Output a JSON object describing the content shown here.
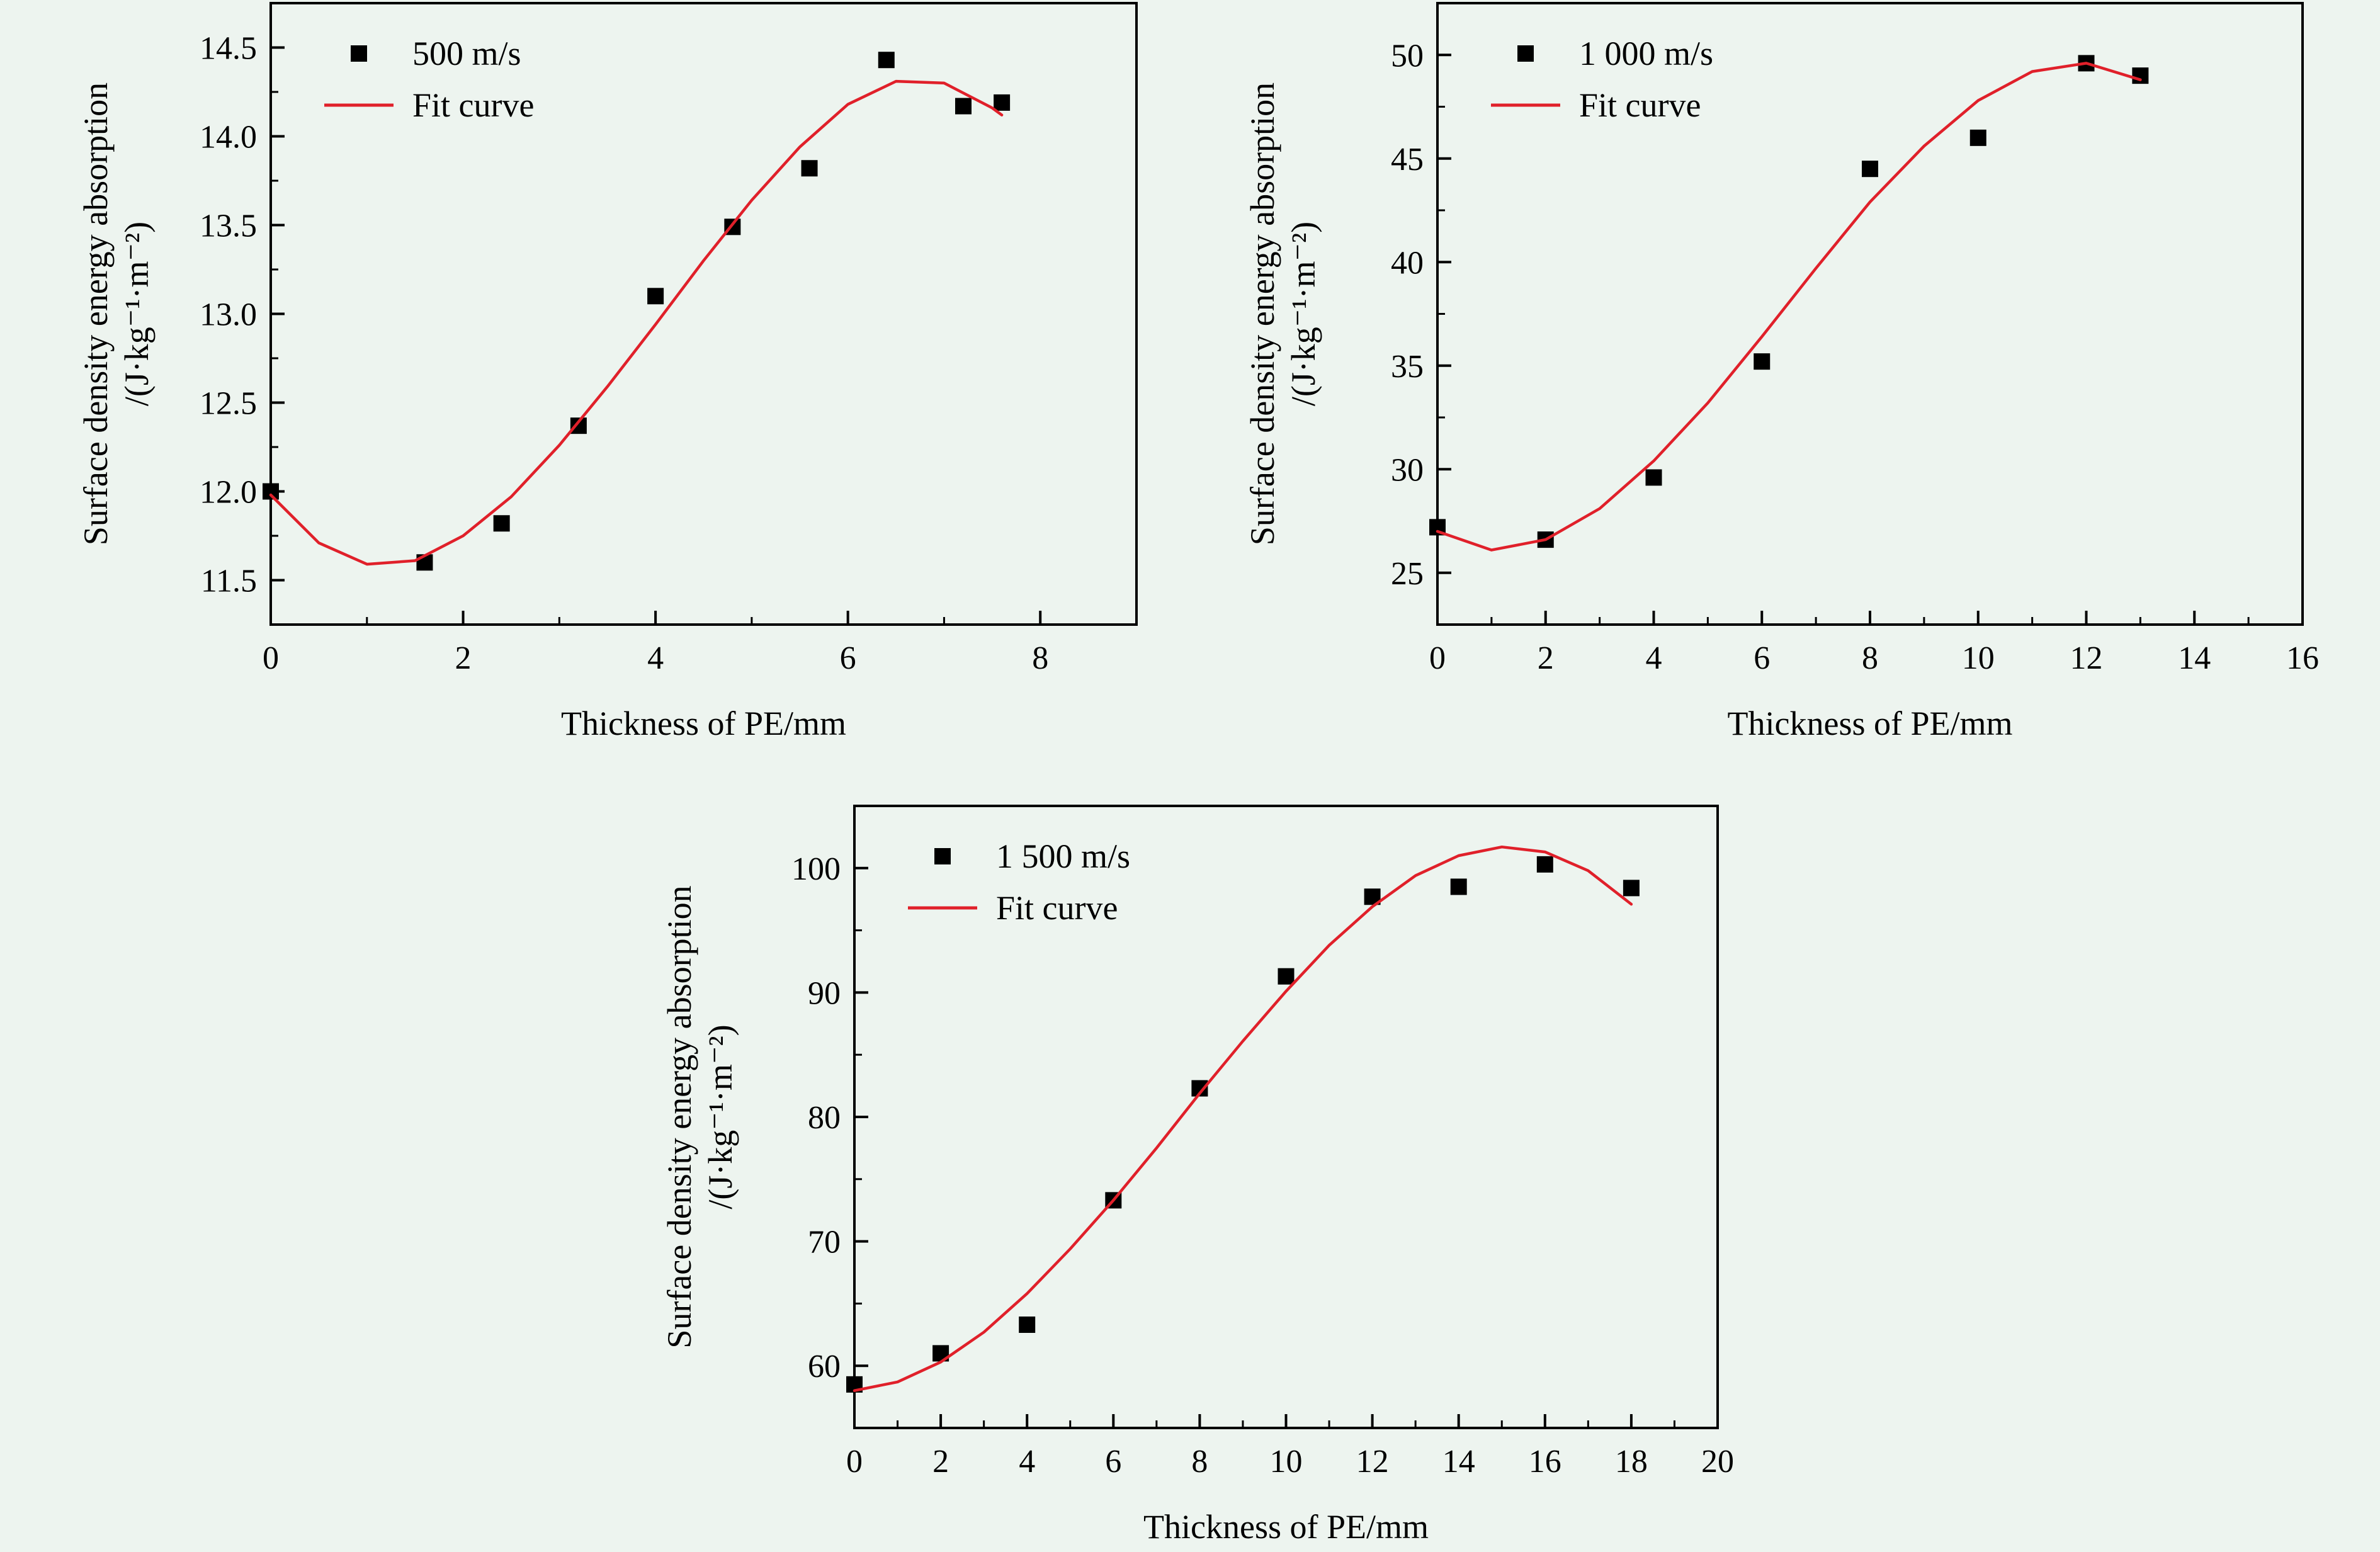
{
  "colors": {
    "background": "#edf4ef",
    "fit": "#e0202a",
    "marker": "#000000"
  },
  "chart_data": [
    {
      "type": "scatter",
      "xlabel": "Thickness of PE/mm",
      "ylabel_line1": "Surface density energy absorption",
      "ylabel_line2": "/(J·kg⁻¹·m⁻²)",
      "xlim": [
        0,
        9
      ],
      "ylim": [
        11.25,
        14.75
      ],
      "xticks": [
        0,
        2,
        4,
        6,
        8
      ],
      "yticks": [
        11.5,
        12.0,
        12.5,
        13.0,
        13.5,
        14.0,
        14.5
      ],
      "ytick_labels": [
        "11.5",
        "12.0",
        "12.5",
        "13.0",
        "13.5",
        "14.0",
        "14.5"
      ],
      "grid": false,
      "legend_position": "top-left",
      "series": [
        {
          "name": "500 m/s",
          "kind": "scatter",
          "marker": "square",
          "x": [
            0,
            1.6,
            2.4,
            3.2,
            4.0,
            4.8,
            5.6,
            6.4,
            7.2,
            7.6
          ],
          "y": [
            12.0,
            11.6,
            11.82,
            12.37,
            13.1,
            13.49,
            13.82,
            14.43,
            14.17,
            14.19
          ]
        },
        {
          "name": "Fit curve",
          "kind": "line",
          "x": [
            0,
            0.5,
            1.0,
            1.5,
            2.0,
            2.5,
            3.0,
            3.5,
            4.0,
            4.5,
            5.0,
            5.5,
            6.0,
            6.5,
            7.0,
            7.5,
            7.6
          ],
          "y": [
            11.98,
            11.71,
            11.59,
            11.61,
            11.75,
            11.97,
            12.26,
            12.59,
            12.94,
            13.3,
            13.64,
            13.94,
            14.18,
            14.31,
            14.3,
            14.16,
            14.12
          ]
        }
      ]
    },
    {
      "type": "scatter",
      "xlabel": "Thickness of PE/mm",
      "ylabel_line1": "Surface density energy absorption",
      "ylabel_line2": "/(J·kg⁻¹·m⁻²)",
      "xlim": [
        0,
        16
      ],
      "ylim": [
        22.5,
        52.5
      ],
      "xticks": [
        0,
        2,
        4,
        6,
        8,
        10,
        12,
        14,
        16
      ],
      "yticks": [
        25,
        30,
        35,
        40,
        45,
        50
      ],
      "ytick_labels": [
        "25",
        "30",
        "35",
        "40",
        "45",
        "50"
      ],
      "grid": false,
      "legend_position": "top-left",
      "series": [
        {
          "name": "1 000 m/s",
          "kind": "scatter",
          "marker": "square",
          "x": [
            0,
            2,
            4,
            6,
            8,
            10,
            12,
            13
          ],
          "y": [
            27.2,
            26.6,
            29.6,
            35.2,
            44.5,
            46.0,
            49.6,
            49.0
          ]
        },
        {
          "name": "Fit curve",
          "kind": "line",
          "x": [
            0,
            1,
            2,
            3,
            4,
            5,
            6,
            7,
            8,
            9,
            10,
            11,
            12,
            13
          ],
          "y": [
            27.0,
            26.1,
            26.6,
            28.1,
            30.4,
            33.2,
            36.4,
            39.7,
            42.9,
            45.6,
            47.8,
            49.2,
            49.6,
            48.8
          ]
        }
      ]
    },
    {
      "type": "scatter",
      "xlabel": "Thickness of PE/mm",
      "ylabel_line1": "Surface density energy absorption",
      "ylabel_line2": "/(J·kg⁻¹·m⁻²)",
      "xlim": [
        0,
        20
      ],
      "ylim": [
        55,
        105
      ],
      "xticks": [
        0,
        2,
        4,
        6,
        8,
        10,
        12,
        14,
        16,
        18,
        20
      ],
      "yticks": [
        60,
        70,
        80,
        90,
        100
      ],
      "ytick_labels": [
        "60",
        "70",
        "80",
        "90",
        "100"
      ],
      "grid": false,
      "legend_position": "top-left",
      "series": [
        {
          "name": "1 500 m/s",
          "kind": "scatter",
          "marker": "square",
          "x": [
            0,
            2,
            4,
            6,
            8,
            10,
            12,
            14,
            16,
            18
          ],
          "y": [
            58.5,
            61.0,
            63.3,
            73.3,
            82.3,
            91.3,
            97.7,
            98.5,
            100.3,
            98.4
          ]
        },
        {
          "name": "Fit curve",
          "kind": "line",
          "x": [
            0,
            1,
            2,
            3,
            4,
            5,
            6,
            7,
            8,
            9,
            10,
            11,
            12,
            13,
            14,
            15,
            16,
            17,
            18
          ],
          "y": [
            58.0,
            58.7,
            60.3,
            62.7,
            65.8,
            69.4,
            73.3,
            77.5,
            81.9,
            86.1,
            90.1,
            93.8,
            96.9,
            99.4,
            101.0,
            101.7,
            101.3,
            99.8,
            97.1
          ]
        }
      ]
    }
  ]
}
